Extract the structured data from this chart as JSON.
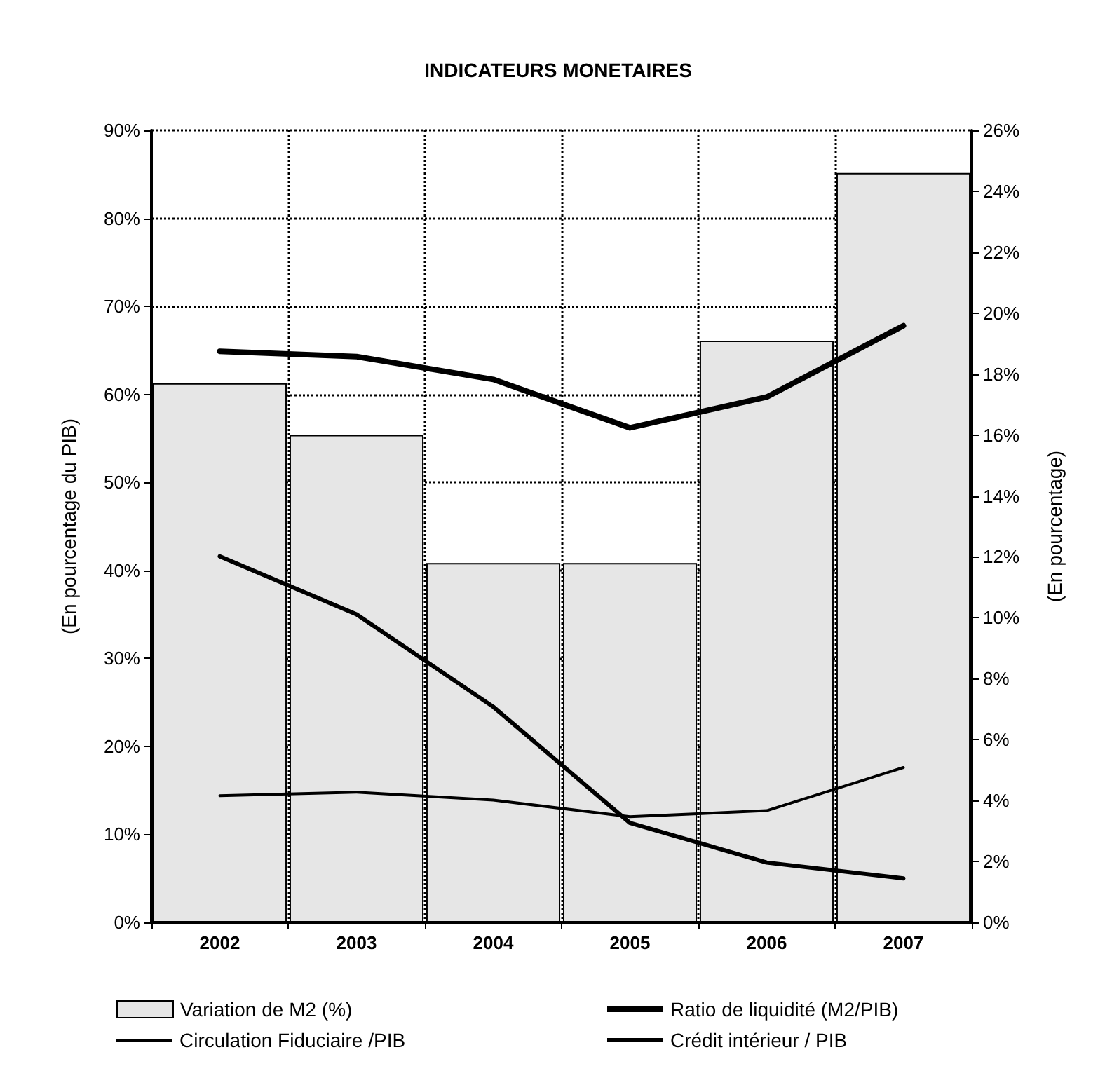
{
  "chart_data": {
    "type": "bar",
    "title": "INDICATEURS MONETAIRES",
    "ylabel": "(En pourcentage du PIB)",
    "y2label": "(En pourcentage)",
    "categories": [
      "2002",
      "2003",
      "2004",
      "2005",
      "2006",
      "2007"
    ],
    "series": [
      {
        "name": "Variation de M2 (%)",
        "axis": "y2",
        "color": "#e6e6e6",
        "values": [
          17.7,
          16.0,
          11.8,
          11.8,
          19.1,
          24.6
        ]
      },
      {
        "name": "Ratio de liquidité (M2/PIB)",
        "type": "line",
        "color": "#000000",
        "values": [
          64.9,
          64.3,
          61.7,
          56.2,
          59.7,
          67.8
        ]
      },
      {
        "name": "Circulation Fiduciaire /PIB",
        "type": "line",
        "color": "#000000",
        "values": [
          14.4,
          14.8,
          13.9,
          12.0,
          12.7,
          17.6
        ]
      },
      {
        "name": "Crédit intérieur / PIB",
        "type": "line",
        "color": "#000000",
        "values": [
          41.6,
          35.0,
          24.5,
          11.3,
          6.8,
          5.0
        ]
      }
    ],
    "ylim": [
      0,
      90
    ],
    "yticks": [
      {
        "value": 0,
        "label": "0%"
      },
      {
        "value": 10,
        "label": "10%"
      },
      {
        "value": 20,
        "label": "20%"
      },
      {
        "value": 30,
        "label": "30%"
      },
      {
        "value": 40,
        "label": "40%"
      },
      {
        "value": 50,
        "label": "50%"
      },
      {
        "value": 60,
        "label": "60%"
      },
      {
        "value": 70,
        "label": "70%"
      },
      {
        "value": 80,
        "label": "80%"
      },
      {
        "value": 90,
        "label": "90%"
      }
    ],
    "y2lim": [
      0,
      26
    ],
    "y2ticks": [
      {
        "value": 0,
        "label": "0%"
      },
      {
        "value": 2,
        "label": "2%"
      },
      {
        "value": 4,
        "label": "4%"
      },
      {
        "value": 6,
        "label": "6%"
      },
      {
        "value": 8,
        "label": "8%"
      },
      {
        "value": 10,
        "label": "10%"
      },
      {
        "value": 12,
        "label": "12%"
      },
      {
        "value": 14,
        "label": "14%"
      },
      {
        "value": 16,
        "label": "16%"
      },
      {
        "value": 18,
        "label": "18%"
      },
      {
        "value": 20,
        "label": "20%"
      },
      {
        "value": 22,
        "label": "22%"
      },
      {
        "value": 24,
        "label": "24%"
      },
      {
        "value": 26,
        "label": "26%"
      }
    ],
    "grid": true,
    "legend": "bottom",
    "marker": "none",
    "line_style": "solid"
  }
}
